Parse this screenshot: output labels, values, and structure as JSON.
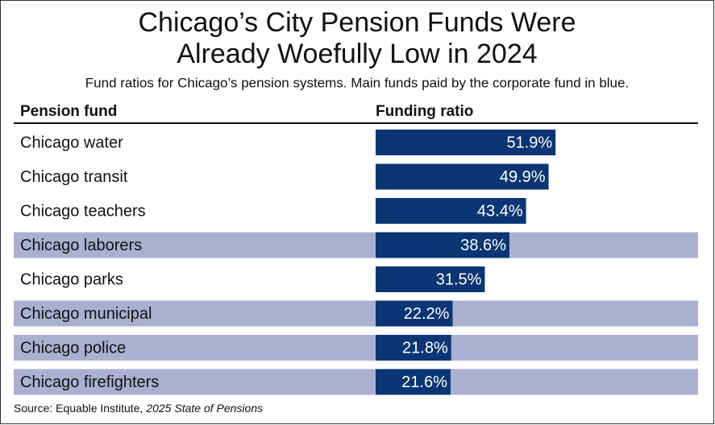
{
  "chart_data": {
    "type": "bar",
    "title": [
      "Chicago’s City Pension Funds Were",
      "Already Woefully Low in 2024"
    ],
    "subtitle": "Fund ratios for Chicago’s pension systems. Main funds paid by the corporate fund in blue.",
    "column_headers": [
      "Pension fund",
      "Funding ratio"
    ],
    "categories": [
      "Chicago water",
      "Chicago transit",
      "Chicago teachers",
      "Chicago laborers",
      "Chicago parks",
      "Chicago municipal",
      "Chicago police",
      "Chicago firefighters"
    ],
    "values": [
      51.9,
      49.9,
      43.4,
      38.6,
      31.5,
      22.2,
      21.8,
      21.6
    ],
    "value_labels": [
      "51.9%",
      "49.9%",
      "43.4%",
      "38.6%",
      "31.5%",
      "22.2%",
      "21.8%",
      "21.6%"
    ],
    "color": "#0b3574",
    "highlight": [
      false,
      false,
      false,
      true,
      false,
      true,
      true,
      true
    ],
    "highlight_color": "#a9b0d0",
    "source": "Source: Equable Institute,",
    "source_title": "2025 State of Pensions"
  }
}
